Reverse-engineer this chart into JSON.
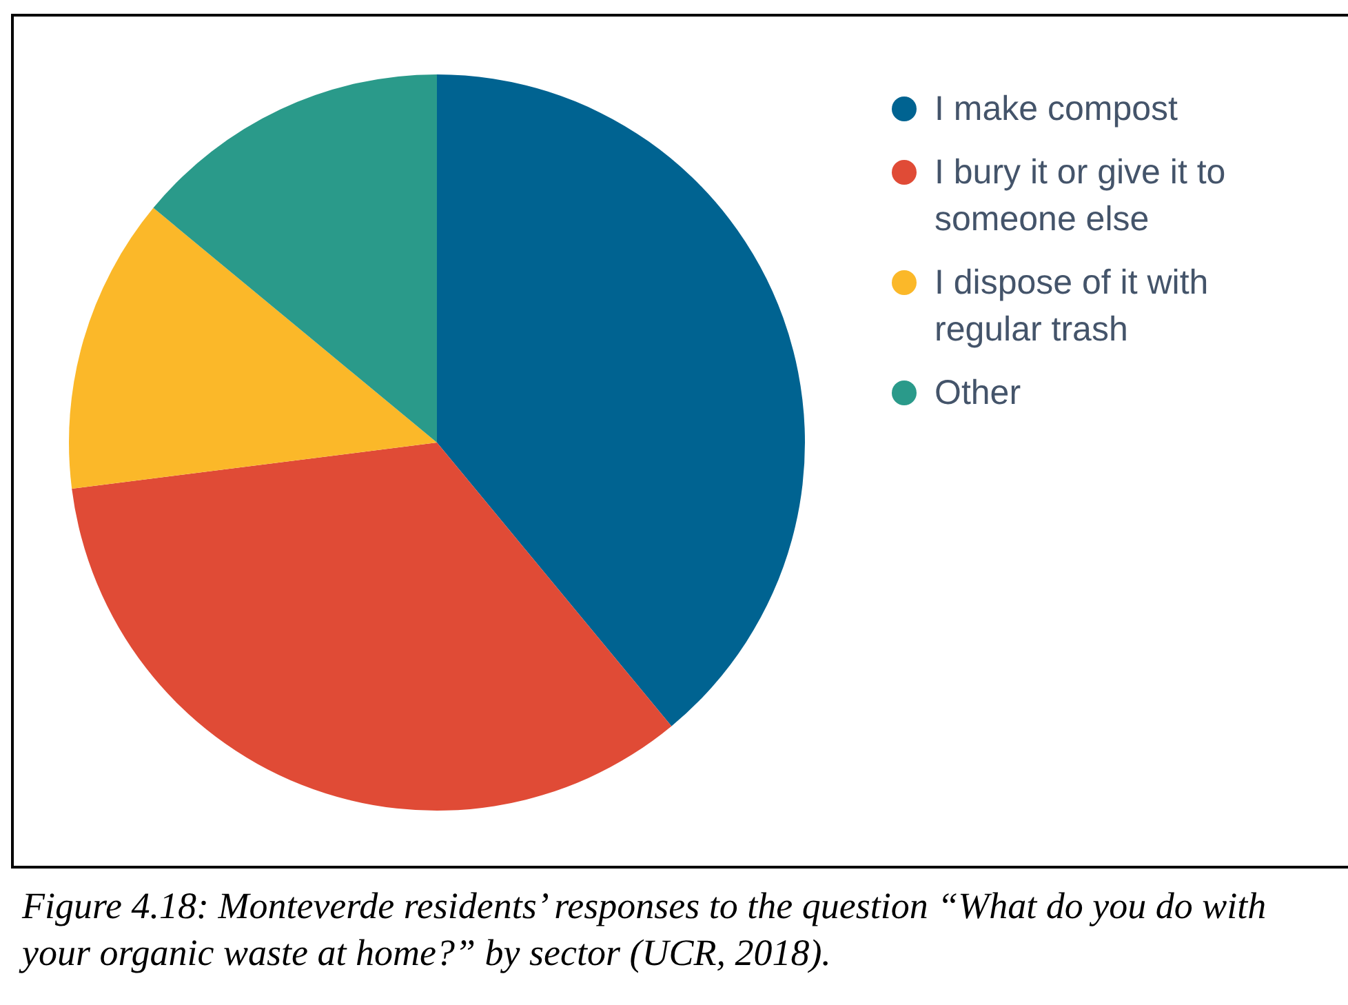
{
  "chart_data": {
    "type": "pie",
    "categories": [
      "I make compost",
      "I bury it or give it to someone else",
      "I dispose of it with regular trash",
      "Other"
    ],
    "values": [
      39,
      34,
      13,
      14
    ],
    "colors": [
      "#006391",
      "#e04b36",
      "#fbb829",
      "#2a9a8a"
    ],
    "legend": "top right",
    "annotations": [
      "Figure 4.18: Monteverde residents’ responses to the question “What do you do with your organic waste at home?” by sector (UCR, 2018)."
    ]
  }
}
